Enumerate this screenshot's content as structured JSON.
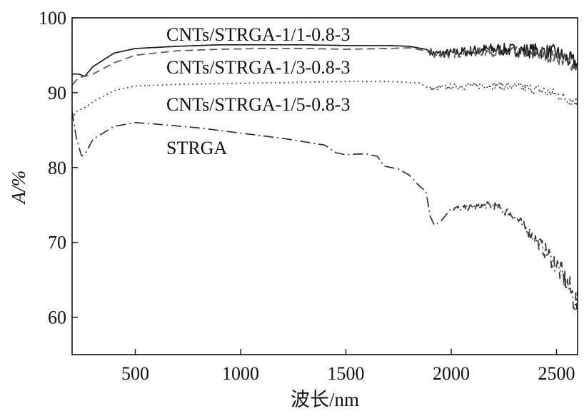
{
  "chart_data": {
    "type": "line",
    "title": "",
    "xlabel": "波长/nm",
    "ylabel": "A/%",
    "xlim": [
      200,
      2600
    ],
    "ylim": [
      55,
      100
    ],
    "xticks": [
      500,
      1000,
      1500,
      2000,
      2500
    ],
    "yticks": [
      60,
      70,
      80,
      90,
      100
    ],
    "grid": false,
    "legend": "inline labels, top-left of plot",
    "series": [
      {
        "name": "CNTs/STRGA-1/1-0.8-3",
        "style": "solid",
        "color": "#1a1a1a",
        "noise": [
          [
            1900,
            0.5
          ],
          [
            2600,
            1.2
          ]
        ],
        "x": [
          200,
          230,
          260,
          300,
          400,
          500,
          700,
          900,
          1100,
          1300,
          1500,
          1700,
          1800,
          1880,
          1920,
          2000,
          2100,
          2200,
          2300,
          2400,
          2500,
          2550,
          2600
        ],
        "y": [
          92.5,
          92.5,
          92.2,
          93.5,
          95.3,
          95.9,
          96.2,
          96.4,
          96.4,
          96.4,
          96.3,
          96.3,
          96.2,
          95.8,
          95.2,
          95.3,
          95.6,
          95.8,
          95.7,
          95.6,
          95.3,
          94.5,
          93.8
        ]
      },
      {
        "name": "CNTs/STRGA-1/3-0.8-3",
        "style": "dashed",
        "color": "#555555",
        "noise": [
          [
            1900,
            0.4
          ],
          [
            2600,
            1.0
          ]
        ],
        "x": [
          200,
          230,
          260,
          300,
          400,
          500,
          700,
          900,
          1100,
          1300,
          1500,
          1700,
          1800,
          1880,
          1920,
          2000,
          2100,
          2200,
          2300,
          2400,
          2500,
          2550,
          2600
        ],
        "y": [
          91.0,
          92.0,
          92.2,
          92.5,
          94.0,
          95.0,
          95.6,
          95.8,
          95.9,
          95.9,
          95.8,
          95.9,
          96.0,
          95.6,
          95.0,
          95.1,
          95.4,
          95.5,
          95.4,
          95.2,
          94.8,
          94.2,
          93.5
        ]
      },
      {
        "name": "CNTs/STRGA-1/5-0.8-3",
        "style": "dotted",
        "color": "#333333",
        "noise": [
          [
            1900,
            0.35
          ],
          [
            2600,
            0.8
          ]
        ],
        "x": [
          200,
          220,
          260,
          300,
          400,
          500,
          700,
          900,
          1100,
          1300,
          1500,
          1700,
          1850,
          1900,
          1950,
          2000,
          2100,
          2200,
          2300,
          2400,
          2500,
          2550,
          2600
        ],
        "y": [
          86.5,
          87.5,
          88.0,
          88.8,
          90.3,
          90.9,
          91.1,
          91.2,
          91.3,
          91.4,
          91.5,
          91.5,
          91.3,
          90.5,
          90.6,
          90.8,
          90.9,
          91.0,
          90.8,
          90.5,
          89.8,
          89.2,
          88.8
        ]
      },
      {
        "name": "STRGA",
        "style": "dashdot",
        "color": "#333333",
        "noise": [
          [
            2000,
            0.3
          ],
          [
            2400,
            0.8
          ],
          [
            2600,
            2.0
          ]
        ],
        "x": [
          200,
          220,
          245,
          265,
          300,
          400,
          500,
          600,
          800,
          1000,
          1200,
          1400,
          1450,
          1500,
          1550,
          1600,
          1650,
          1680,
          1750,
          1800,
          1850,
          1880,
          1900,
          1920,
          1950,
          2000,
          2100,
          2200,
          2300,
          2400,
          2500,
          2550,
          2600
        ],
        "y": [
          87.5,
          84.0,
          81.5,
          82.0,
          83.8,
          85.5,
          86.0,
          85.8,
          85.3,
          84.6,
          83.9,
          83.0,
          82.0,
          81.7,
          81.8,
          81.8,
          81.5,
          80.2,
          79.8,
          79.0,
          77.5,
          76.8,
          73.5,
          72.3,
          72.8,
          74.5,
          74.7,
          75.0,
          73.5,
          70.5,
          67.0,
          64.5,
          61.5
        ]
      }
    ],
    "annotations": [
      {
        "text": "CNTs/STRGA-1/1-0.8-3",
        "series": 0
      },
      {
        "text": "CNTs/STRGA-1/3-0.8-3",
        "series": 1
      },
      {
        "text": "CNTs/STRGA-1/5-0.8-3",
        "series": 2
      },
      {
        "text": "STRGA",
        "series": 3
      }
    ]
  }
}
